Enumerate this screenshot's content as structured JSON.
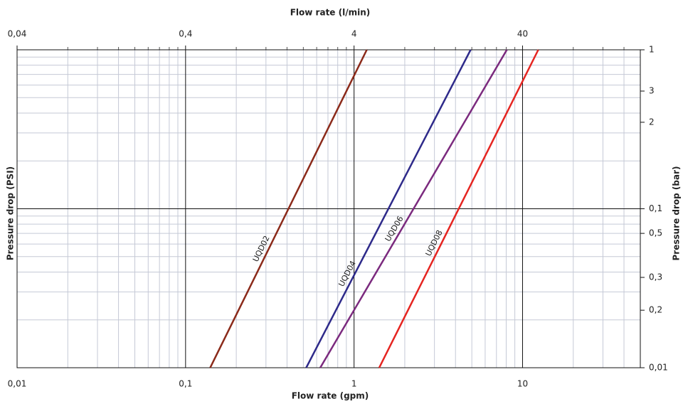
{
  "chart_data": {
    "type": "line",
    "xlabel": "Flow rate (gpm)",
    "x2label": "Flow rate (l/min)",
    "ylabel": "Pressure drop (PSI)",
    "y2label": "Pressure drop (bar)",
    "log_x": true,
    "log_y": true,
    "grid": true,
    "xlim": [
      0.01,
      50
    ],
    "xticks": [
      {
        "value": 0.01,
        "label": "0,01"
      },
      {
        "value": 0.1,
        "label": "0,1"
      },
      1,
      10
    ],
    "x2lim": [
      0.04,
      200
    ],
    "x2ticks": [
      {
        "value": 0.04,
        "label": "0,04"
      },
      {
        "value": 0.4,
        "label": "0,4"
      },
      4,
      40
    ],
    "ylim": [
      0.01,
      1
    ],
    "yticks": [
      1,
      {
        "value": 0.55,
        "label": "3"
      },
      {
        "value": 0.35,
        "label": "2"
      },
      {
        "value": 0.1,
        "label": "0,1"
      },
      {
        "value": 0.07,
        "label": "0,5"
      },
      {
        "value": 0.037,
        "label": "0,3"
      },
      {
        "value": 0.023,
        "label": "0,2"
      },
      {
        "value": 0.01,
        "label": "0,01"
      }
    ],
    "series": [
      {
        "name": "UQD02",
        "color": "#8b2a1a",
        "x": [
          0.14,
          1.19
        ],
        "values": [
          0.01,
          1
        ]
      },
      {
        "name": "UQD04",
        "color": "#2e2a8a",
        "x": [
          0.52,
          4.92
        ],
        "values": [
          0.01,
          1
        ]
      },
      {
        "name": "UQD06",
        "color": "#7b2a7e",
        "x": [
          0.63,
          8.07
        ],
        "values": [
          0.01,
          1
        ]
      },
      {
        "name": "UQD08",
        "color": "#e52521",
        "x": [
          1.41,
          12.4
        ],
        "values": [
          0.01,
          1
        ]
      }
    ]
  }
}
